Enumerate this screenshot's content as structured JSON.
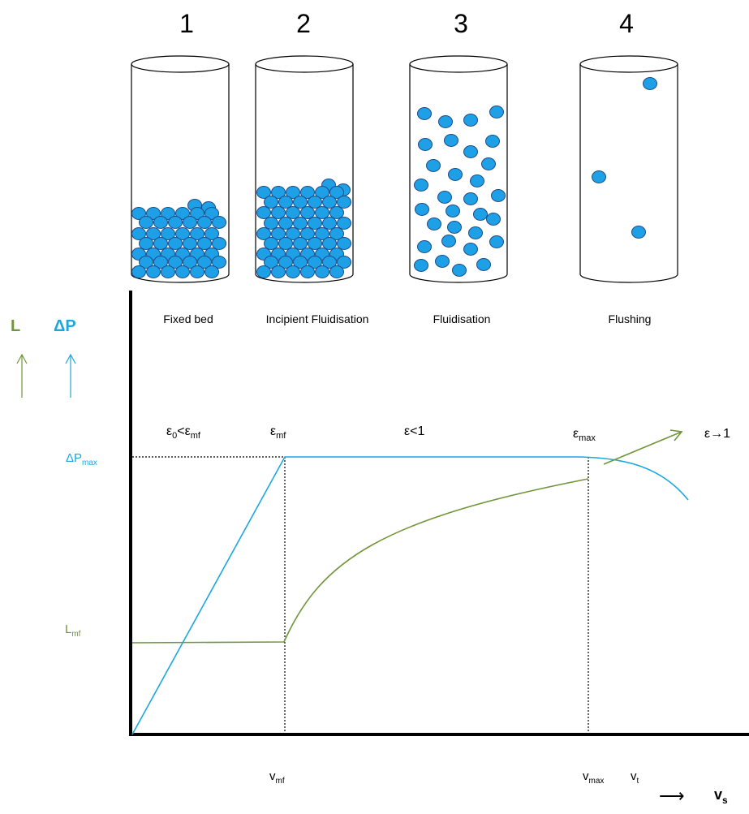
{
  "colors": {
    "dp_curve": "#1ca7e0",
    "l_curve": "#70953a",
    "particle_fill": "#1ea0e6",
    "particle_stroke": "#1f4a8a",
    "axis": "#000000"
  },
  "columns": [
    {
      "number": "1",
      "label": "Fixed bed"
    },
    {
      "number": "2",
      "label": "Incipient Fluidisation"
    },
    {
      "number": "3",
      "label": "Fluidisation"
    },
    {
      "number": "4",
      "label": "Flushing"
    }
  ],
  "axes": {
    "y_left_label": "L",
    "y_right_label": "ΔP",
    "x_arrow": "⟶",
    "x_label": {
      "base": "v",
      "sub": "s"
    }
  },
  "y_ticks": {
    "dp_max": {
      "base": "ΔP",
      "sub": "max"
    },
    "l_mf": {
      "base": "L",
      "sub": "mf"
    }
  },
  "x_ticks": {
    "v_mf": {
      "base": "v",
      "sub": "mf"
    },
    "v_max": {
      "base": "v",
      "sub": "max"
    },
    "v_t": {
      "base": "v",
      "sub": "t"
    }
  },
  "regions": {
    "fixed": {
      "base": "ε",
      "sub1": "0",
      "mid": "<ε",
      "sub2": "mf"
    },
    "mf": {
      "base": "ε",
      "sub": "mf"
    },
    "fluid": {
      "text": "ε<1"
    },
    "max": {
      "base": "ε",
      "sub": "max"
    },
    "flush": {
      "text": "ε→1"
    }
  }
}
